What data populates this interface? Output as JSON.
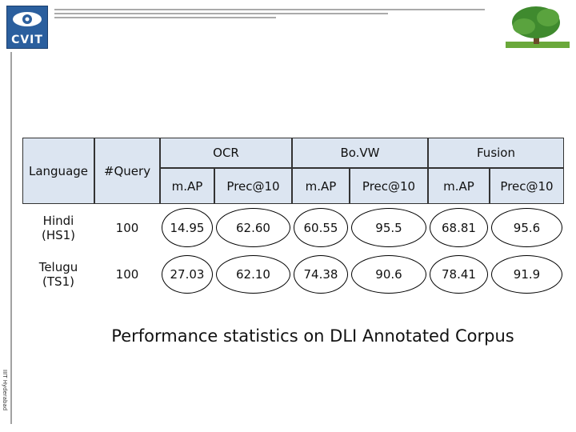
{
  "header": {
    "logo_text": "CVIT"
  },
  "table": {
    "row_headers": [
      "Language",
      "#Query"
    ],
    "groups": [
      "OCR",
      "Bo.VW",
      "Fusion"
    ],
    "sub_headers": [
      "m.AP",
      "Prec@10",
      "m.AP",
      "Prec@10",
      "m.AP",
      "Prec@10"
    ],
    "rows": [
      [
        "Hindi (HS1)",
        "100",
        "14.95",
        "62.60",
        "60.55",
        "95.5",
        "68.81",
        "95.6"
      ],
      [
        "Telugu (TS1)",
        "100",
        "27.03",
        "62.10",
        "74.38",
        "90.6",
        "78.41",
        "91.9"
      ]
    ]
  },
  "caption": "Performance statistics on DLI Annotated Corpus",
  "footer": "IIIT Hyderabad"
}
